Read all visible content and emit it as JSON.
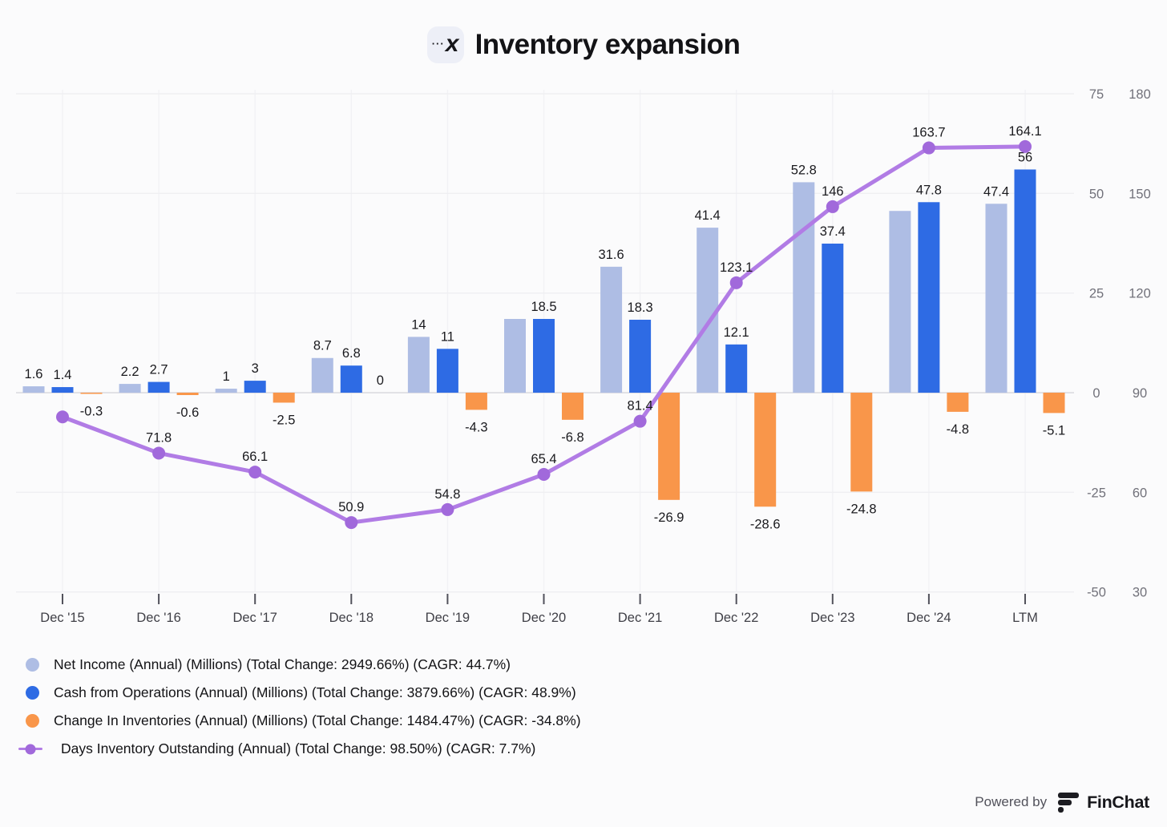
{
  "header": {
    "title": "Inventory expansion",
    "icon_dots": "···",
    "icon_x": "x"
  },
  "chart_data": {
    "type": "combo-bar-line",
    "title": "Inventory expansion",
    "categories": [
      "Dec '15",
      "Dec '16",
      "Dec '17",
      "Dec '18",
      "Dec '19",
      "Dec '20",
      "Dec '21",
      "Dec '22",
      "Dec '23",
      "Dec '24",
      "LTM"
    ],
    "left_axis": {
      "ticks": [
        75,
        50,
        25,
        0,
        -25,
        -50
      ],
      "range": [
        -50,
        75
      ]
    },
    "right_axis": {
      "ticks": [
        180,
        150,
        120,
        90,
        60,
        30
      ],
      "range": [
        30,
        180
      ]
    },
    "grid": "on",
    "legend_position": "bottom-left",
    "series": [
      {
        "name": "Net Income (Annual) (Millions)",
        "type": "bar",
        "axis": "left",
        "color": "#AEBDE4",
        "values": [
          1.6,
          2.2,
          1,
          8.7,
          14,
          18.5,
          31.6,
          41.4,
          52.8,
          45.6,
          47.4
        ],
        "labels": [
          "1.6",
          "2.2",
          "1",
          "8.7",
          "14",
          "",
          "31.6",
          "41.4",
          "52.8",
          "",
          "47.4"
        ]
      },
      {
        "name": "Cash from Operations (Annual) (Millions)",
        "type": "bar",
        "axis": "left",
        "color": "#2E6BE4",
        "values": [
          1.4,
          2.7,
          3,
          6.8,
          11,
          18.5,
          18.3,
          12.1,
          37.4,
          47.8,
          56
        ],
        "labels": [
          "1.4",
          "2.7",
          "3",
          "6.8",
          "11",
          "18.5",
          "18.3",
          "12.1",
          "37.4",
          "47.8",
          "56"
        ]
      },
      {
        "name": "Change In Inventories (Annual) (Millions)",
        "type": "bar",
        "axis": "left",
        "color": "#F9964A",
        "values": [
          -0.3,
          -0.6,
          -2.5,
          0,
          -4.3,
          -6.8,
          -26.9,
          -28.6,
          -24.8,
          -4.8,
          -5.1
        ],
        "labels": [
          "-0.3",
          "-0.6",
          "-2.5",
          "0",
          "-4.3",
          "-6.8",
          "-26.9",
          "-28.6",
          "-24.8",
          "-4.8",
          "-5.1"
        ]
      },
      {
        "name": "Days Inventory Outstanding (Annual)",
        "type": "line",
        "axis": "right",
        "color": "#B17CE5",
        "marker_color": "#A169DB",
        "values": [
          82.7,
          71.8,
          66.1,
          50.9,
          54.8,
          65.4,
          81.4,
          123.1,
          146,
          163.7,
          164.1
        ],
        "labels": [
          "",
          "71.8",
          "66.1",
          "50.9",
          "54.8",
          "65.4",
          "81.4",
          "123.1",
          "146",
          "163.7",
          "164.1"
        ]
      }
    ]
  },
  "legend": {
    "items": [
      {
        "label": "Net Income (Annual) (Millions) (Total Change: 2949.66%) (CAGR: 44.7%)",
        "marker": "circle",
        "color": "#AEBDE4"
      },
      {
        "label": "Cash from Operations (Annual) (Millions) (Total Change: 3879.66%) (CAGR: 48.9%)",
        "marker": "circle",
        "color": "#2E6BE4"
      },
      {
        "label": "Change In Inventories (Annual) (Millions) (Total Change: 1484.47%) (CAGR: -34.8%)",
        "marker": "circle",
        "color": "#F9964A"
      },
      {
        "label": "Days Inventory Outstanding (Annual) (Total Change: 98.50%) (CAGR: 7.7%)",
        "marker": "line",
        "color": "#B17CE5",
        "marker_color": "#A169DB"
      }
    ]
  },
  "footer": {
    "powered_by": "Powered by",
    "brand": "FinChat"
  },
  "colors": {
    "background": "#FBFBFC",
    "gridline": "#EFEFF2",
    "zero_line": "#DBDBE0",
    "axis_text": "#71717A",
    "x_axis_text": "#3F3F46",
    "data_label": "#1A1A1E"
  }
}
